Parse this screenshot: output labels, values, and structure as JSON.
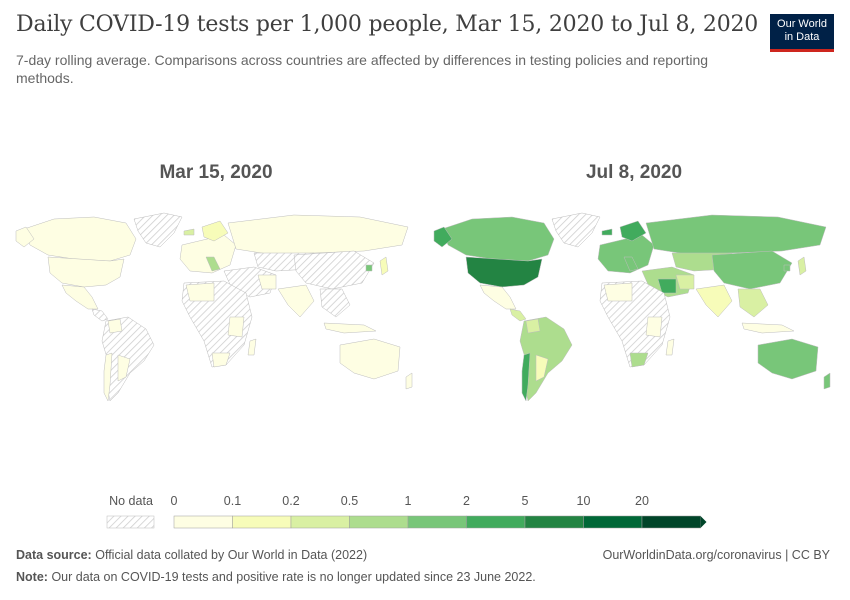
{
  "header": {
    "title": "Daily COVID-19 tests per 1,000 people, Mar 15, 2020 to Jul 8, 2020",
    "subtitle": "7-day rolling average. Comparisons across countries are affected by differences in testing policies and reporting methods.",
    "logo_line1": "Our World",
    "logo_line2": "in Data"
  },
  "maps": {
    "left_title": "Mar 15, 2020",
    "right_title": "Jul 8, 2020"
  },
  "legend": {
    "no_data_label": "No data",
    "bins": [
      "0",
      "0.1",
      "0.2",
      "0.5",
      "1",
      "2",
      "5",
      "10",
      "20"
    ],
    "colors": [
      "#fefee3",
      "#f7fcb9",
      "#d9f0a3",
      "#addd8e",
      "#78c679",
      "#41ab5d",
      "#238443",
      "#006837",
      "#004529"
    ]
  },
  "footer": {
    "source_label": "Data source:",
    "source_text": "Official data collated by Our World in Data (2022)",
    "note_label": "Note:",
    "note_text": "Our data on COVID-19 tests and positive rate is no longer updated since 23 June 2022.",
    "link": "OurWorldinData.org/coronavirus | CC BY"
  }
}
